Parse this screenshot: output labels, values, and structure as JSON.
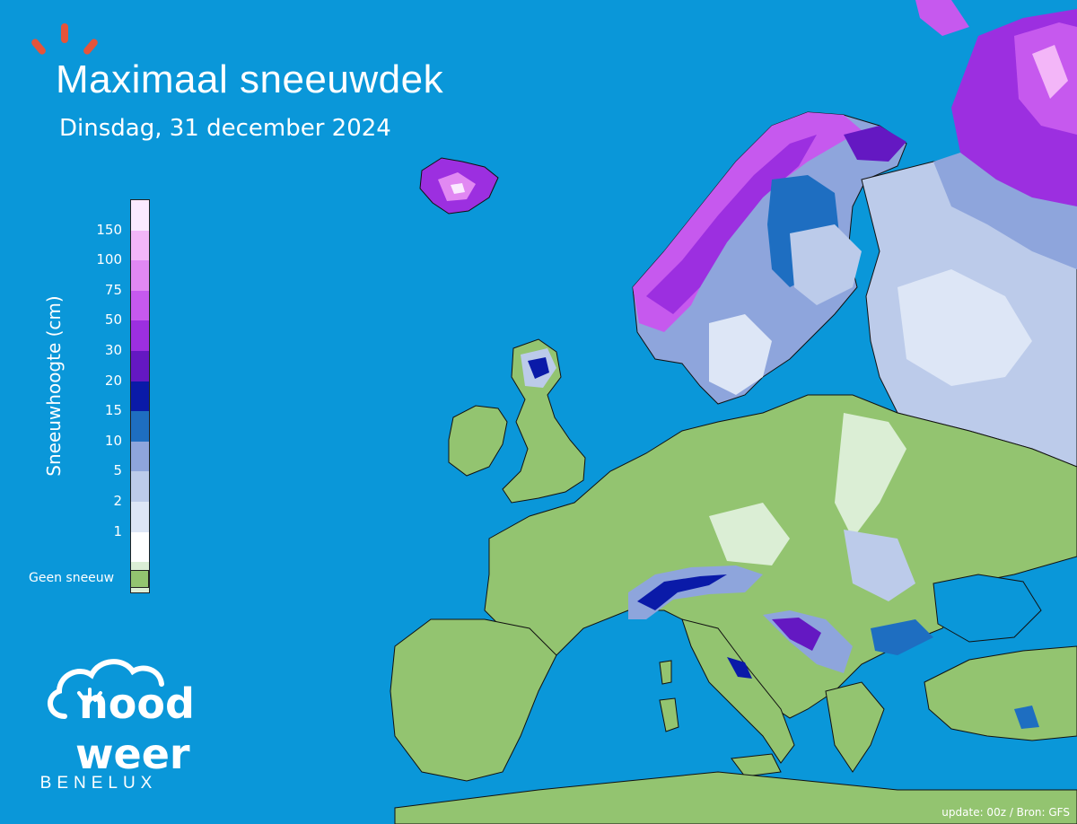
{
  "header": {
    "title": "Maximaal sneeuwdek",
    "subtitle": "Dinsdag, 31 december 2024"
  },
  "legend": {
    "axis_label": "Sneeuwhoogte (cm)",
    "ticks": [
      "150",
      "100",
      "75",
      "50",
      "30",
      "20",
      "15",
      "10",
      "5",
      "2",
      "1"
    ],
    "colors": [
      "#fbeaff",
      "#f3b6f8",
      "#e188f2",
      "#c659ee",
      "#9c2fe0",
      "#6418c2",
      "#0a1aa8",
      "#1e6ec1",
      "#8ea5dc",
      "#bccbea",
      "#dde6f6",
      "#ffffff",
      "#dbeed5"
    ],
    "no_snow_label": "Geen sneeuw",
    "no_snow_color": "#93c470"
  },
  "colors": {
    "sea": "#0a97d9",
    "land": "#93c470",
    "accent": "#e5543a"
  },
  "logo": {
    "line1": "nood",
    "line2": "weer",
    "tagline": "BENELUX",
    "icon": "cloud-sun-icon"
  },
  "footer": {
    "credit": "update: 00z / Bron: GFS"
  }
}
